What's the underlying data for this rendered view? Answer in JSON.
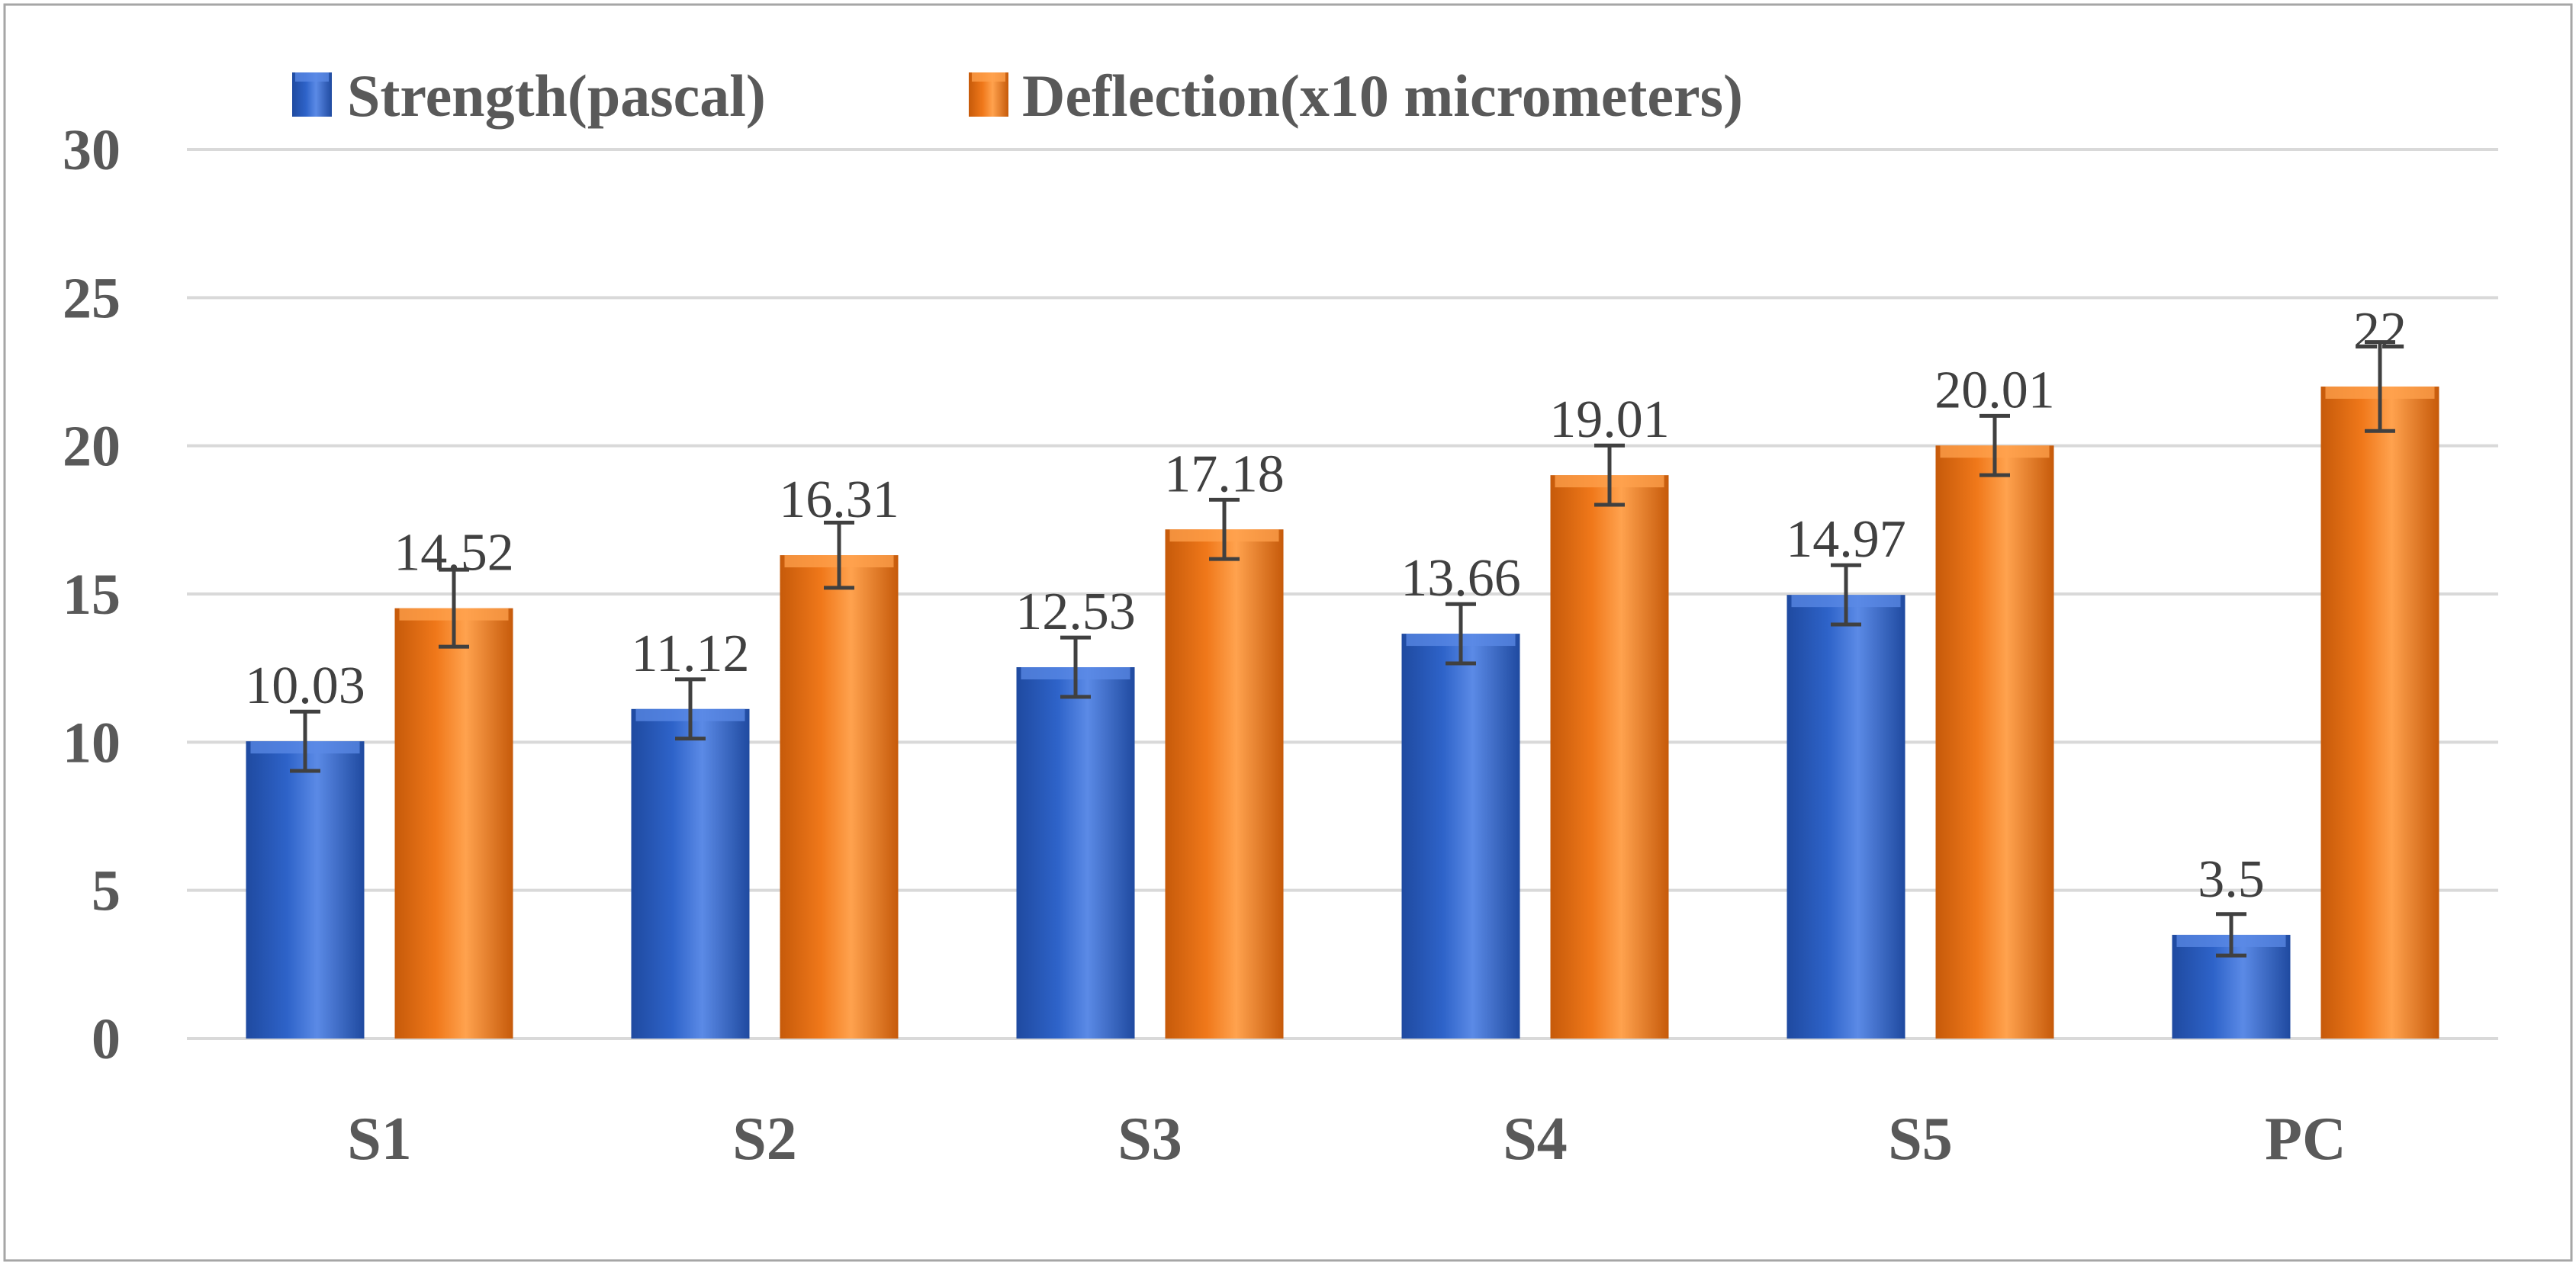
{
  "colors": {
    "strength": "#2e63c9",
    "strength_dark": "#1f4aa0",
    "strength_light": "#5b8ae6",
    "deflection": "#f0781a",
    "deflection_dark": "#c65a0a",
    "deflection_light": "#ffa24e",
    "grid": "#d9d9d9",
    "error_bar": "#404040",
    "frame": "#a6a6a6"
  },
  "chart_data": {
    "type": "bar",
    "categories": [
      "S1",
      "S2",
      "S3",
      "S4",
      "S5",
      "PC"
    ],
    "series": [
      {
        "name": "Strength(pascal)",
        "values": [
          10.03,
          11.12,
          12.53,
          13.66,
          14.97,
          3.5
        ],
        "labels": [
          "10.03",
          "11.12",
          "12.53",
          "13.66",
          "14.97",
          "3.5"
        ],
        "errors": [
          1,
          1,
          1,
          1,
          1,
          0.7
        ]
      },
      {
        "name": "Deflection(x10 micrometers)",
        "values": [
          14.52,
          16.31,
          17.18,
          19.01,
          20.01,
          22
        ],
        "labels": [
          "14.52",
          "16.31",
          "17.18",
          "19.01",
          "20.01",
          "22"
        ],
        "errors": [
          1.3,
          1.1,
          1,
          1,
          1,
          1.5
        ]
      }
    ],
    "yticks": [
      0,
      5,
      10,
      15,
      20,
      25,
      30
    ],
    "ylim": [
      0,
      30
    ],
    "grid": true,
    "legend_position": "top-left",
    "title": "",
    "xlabel": "",
    "ylabel": ""
  }
}
